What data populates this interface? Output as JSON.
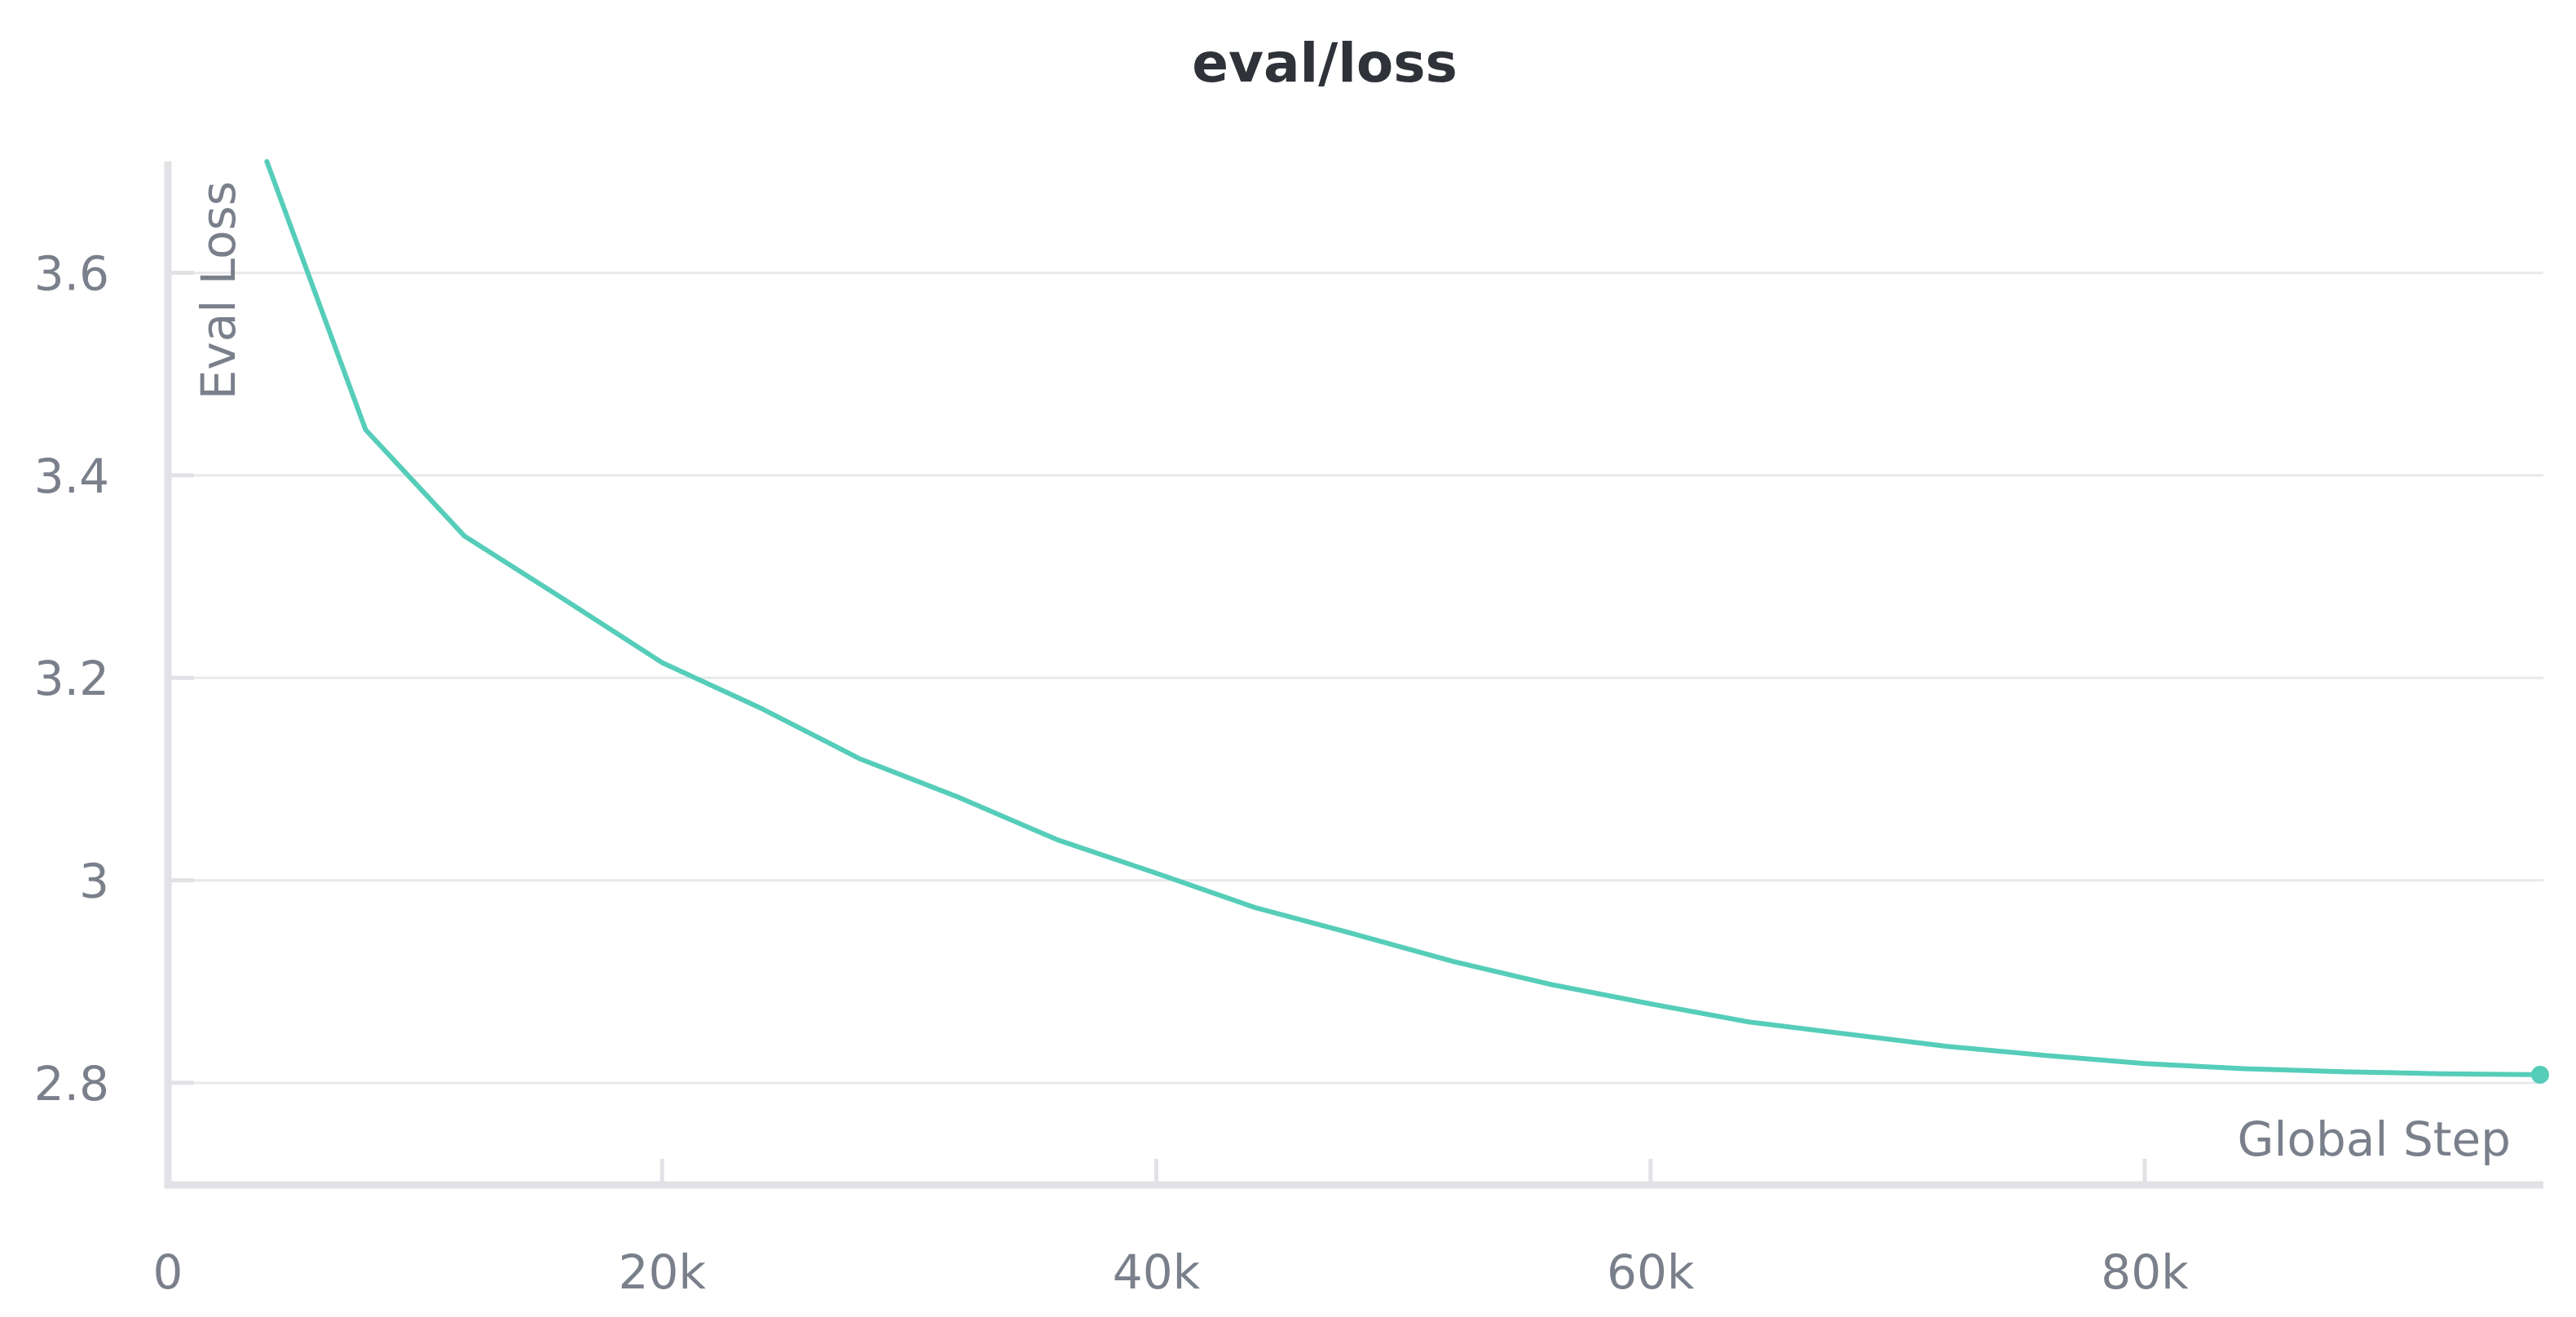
{
  "chart_data": {
    "type": "line",
    "title": "eval/loss",
    "xlabel": "Global Step",
    "ylabel": "Eval Loss",
    "xlim": [
      0,
      96000
    ],
    "ylim": [
      2.7,
      3.71
    ],
    "x_ticks": [
      0,
      20000,
      40000,
      60000,
      80000
    ],
    "x_tick_labels": [
      "0",
      "20k",
      "40k",
      "60k",
      "80k"
    ],
    "y_ticks": [
      2.8,
      3.0,
      3.2,
      3.4,
      3.6
    ],
    "y_tick_labels": [
      "2.8",
      "3",
      "3.2",
      "3.4",
      "3.6"
    ],
    "grid": true,
    "series": [
      {
        "color": "#55cdb9",
        "x": [
          4000,
          8000,
          12000,
          16000,
          20000,
          24000,
          28000,
          32000,
          36000,
          40000,
          44000,
          48000,
          52000,
          56000,
          60000,
          64000,
          68000,
          72000,
          76000,
          80000,
          84000,
          88000,
          92000,
          96000
        ],
        "y": [
          3.71,
          3.445,
          3.34,
          3.278,
          3.215,
          3.17,
          3.12,
          3.082,
          3.04,
          3.007,
          2.973,
          2.947,
          2.92,
          2.897,
          2.878,
          2.86,
          2.848,
          2.836,
          2.827,
          2.819,
          2.814,
          2.811,
          2.809,
          2.808
        ]
      }
    ]
  }
}
